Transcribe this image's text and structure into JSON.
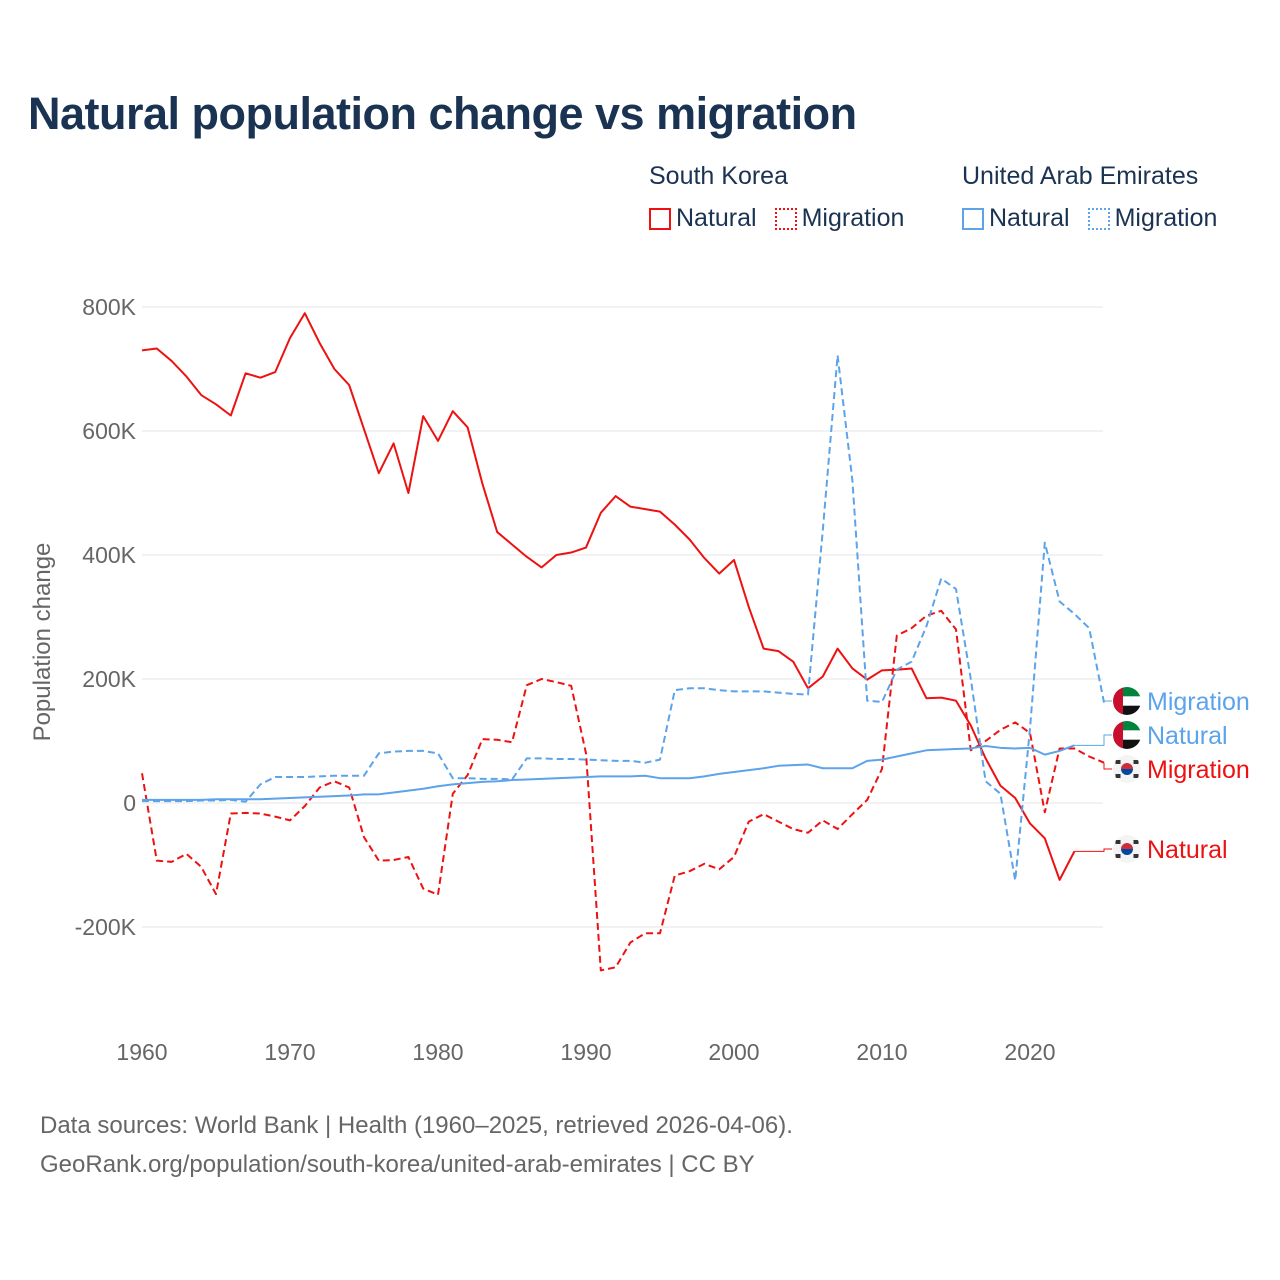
{
  "chart_data": {
    "type": "line",
    "title": "Natural population change vs migration",
    "xlabel": "",
    "ylabel": "Population change",
    "xlim": [
      1960,
      2025
    ],
    "ylim": [
      -300000,
      850000
    ],
    "x_ticks": [
      "1960",
      "1970",
      "1980",
      "1990",
      "2000",
      "2010",
      "2020"
    ],
    "y_ticks": [
      {
        "v": 800000,
        "label": "800K"
      },
      {
        "v": 600000,
        "label": "600K"
      },
      {
        "v": 400000,
        "label": "400K"
      },
      {
        "v": 200000,
        "label": "200K"
      },
      {
        "v": 0,
        "label": "0"
      },
      {
        "v": -200000,
        "label": "-200K"
      }
    ],
    "grid": true,
    "legend": {
      "groups": [
        {
          "title": "South Korea",
          "items": [
            "Natural",
            "Migration"
          ]
        },
        {
          "title": "United Arab Emirates",
          "items": [
            "Natural",
            "Migration"
          ]
        }
      ],
      "placement": "top-right"
    },
    "series": [
      {
        "name": "South Korea Natural",
        "country": "South Korea",
        "kind": "Natural",
        "label": "Natural",
        "color": "#ee1111",
        "dash": false,
        "start": 1960,
        "values": [
          730,
          733,
          713,
          688,
          658,
          643,
          625,
          693,
          686,
          695,
          750,
          790,
          742,
          700,
          674,
          603,
          532,
          580,
          500,
          624,
          584,
          632,
          606,
          515,
          437,
          417,
          397,
          380,
          400,
          404,
          412,
          468,
          495,
          478,
          474,
          470,
          449,
          425,
          395,
          370,
          392,
          316,
          249,
          245,
          228,
          185,
          204,
          249,
          217,
          199,
          214,
          215,
          217,
          169,
          170,
          165,
          125,
          72,
          28,
          8,
          -33,
          -57,
          -124,
          -78
        ]
      },
      {
        "name": "South Korea Migration",
        "country": "South Korea",
        "kind": "Migration",
        "label": "Migration",
        "color": "#ee1111",
        "dash": true,
        "start": 1960,
        "values": [
          48,
          -93,
          -95,
          -82,
          -103,
          -147,
          -17,
          -16,
          -17,
          -22,
          -28,
          -5,
          25,
          35,
          25,
          -55,
          -93,
          -92,
          -87,
          -138,
          -148,
          15,
          45,
          103,
          102,
          98,
          190,
          200,
          195,
          189,
          80,
          -270,
          -265,
          -225,
          -210,
          -210,
          -117,
          -110,
          -98,
          -107,
          -87,
          -30,
          -18,
          -30,
          -42,
          -48,
          -28,
          -42,
          -18,
          5,
          55,
          270,
          282,
          302,
          310,
          280,
          85,
          100,
          118,
          130,
          113,
          -15,
          88,
          88,
          75,
          65
        ]
      },
      {
        "name": "United Arab Emirates Natural",
        "country": "United Arab Emirates",
        "kind": "Natural",
        "label": "Natural",
        "color": "#5ca3ea",
        "dash": false,
        "start": 1960,
        "values": [
          5,
          5,
          5,
          5,
          5,
          6,
          6,
          6,
          6,
          7,
          8,
          9,
          10,
          11,
          12,
          14,
          14,
          17,
          20,
          23,
          27,
          30,
          32,
          34,
          35,
          37,
          38,
          39,
          40,
          41,
          42,
          43,
          43,
          43,
          44,
          40,
          40,
          40,
          43,
          47,
          50,
          53,
          56,
          60,
          61,
          62,
          56,
          56,
          56,
          68,
          70,
          75,
          80,
          85,
          86,
          87,
          88,
          92,
          89,
          88,
          89,
          78,
          84,
          93
        ]
      },
      {
        "name": "United Arab Emirates Migration",
        "country": "United Arab Emirates",
        "kind": "Migration",
        "label": "Migration",
        "color": "#5ca3ea",
        "dash": true,
        "start": 1960,
        "values": [
          3,
          3,
          3,
          3,
          4,
          4,
          5,
          2,
          30,
          42,
          42,
          42,
          43,
          44,
          44,
          44,
          80,
          83,
          84,
          84,
          80,
          40,
          40,
          39,
          39,
          38,
          72,
          72,
          71,
          71,
          70,
          69,
          68,
          68,
          65,
          70,
          182,
          185,
          185,
          182,
          180,
          180,
          180,
          178,
          176,
          175,
          440,
          722,
          520,
          165,
          163,
          215,
          228,
          285,
          362,
          345,
          200,
          35,
          15,
          -125,
          120,
          420,
          325,
          305,
          282,
          162
        ]
      }
    ],
    "units": "thousands of people",
    "end_labels_order": [
      "United Arab Emirates Migration",
      "United Arab Emirates Natural",
      "South Korea Migration",
      "South Korea Natural"
    ]
  },
  "footer": {
    "line1": "Data sources: World Bank | Health (1960–2025, retrieved 2026-04-06).",
    "line2": "GeoRank.org/population/south-korea/united-arab-emirates | CC BY"
  }
}
